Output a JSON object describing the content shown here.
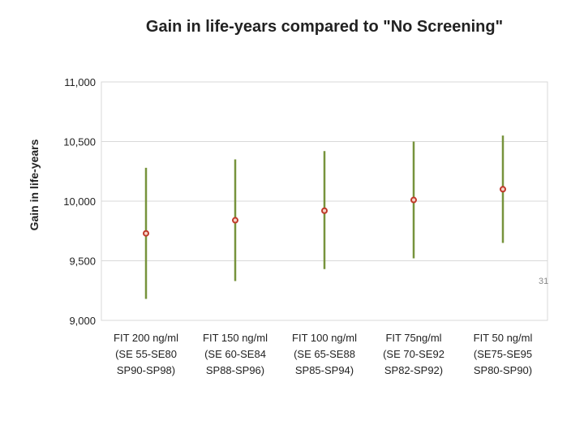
{
  "chart_data": {
    "type": "scatter",
    "title": "Gain in life-years compared to \"No Screening\"",
    "xlabel": "",
    "ylabel": "Gain in life-years",
    "ylim": [
      9000,
      11000
    ],
    "yticks": [
      9000,
      9500,
      10000,
      10500,
      11000
    ],
    "ytick_labels": [
      "9,000",
      "9,500",
      "10,000",
      "10,500",
      "11,000"
    ],
    "grid": true,
    "categories": [
      [
        "FIT 200 ng/ml",
        "(SE 55-SE80",
        "SP90-SP98)"
      ],
      [
        "FIT 150 ng/ml",
        "(SE 60-SE84",
        "SP88-SP96)"
      ],
      [
        "FIT 100 ng/ml",
        "(SE 65-SE88",
        "SP85-SP94)"
      ],
      [
        "FIT 75ng/ml",
        "(SE 70-SE92",
        "SP82-SP92)"
      ],
      [
        "FIT 50 ng/ml",
        "(SE75-SE95",
        "SP80-SP90)"
      ]
    ],
    "values": [
      9730,
      9840,
      9920,
      10010,
      10100
    ],
    "lower": [
      9180,
      9330,
      9430,
      9520,
      9650
    ],
    "upper": [
      10280,
      10350,
      10420,
      10500,
      10550
    ],
    "colors": {
      "point": "#c0392b",
      "range": "#77933c",
      "grid": "#d9d9d9",
      "border": "#d9d9d9"
    }
  },
  "page": {
    "number": "31"
  }
}
